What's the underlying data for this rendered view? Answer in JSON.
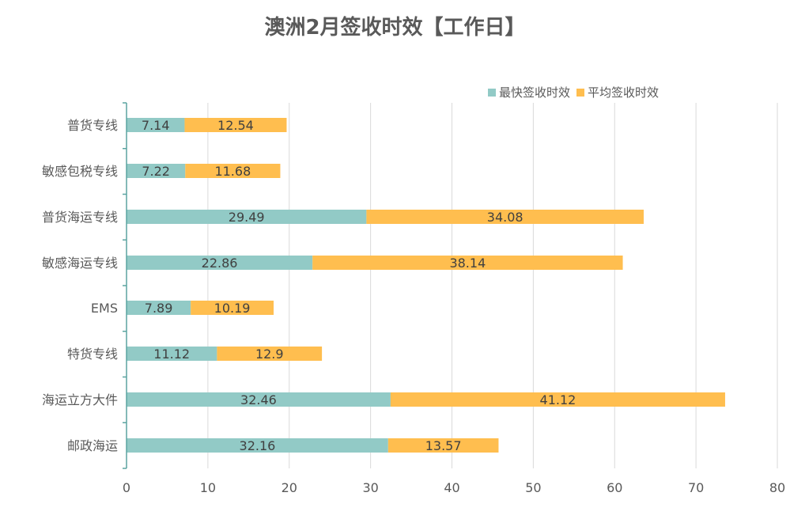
{
  "chart_data": {
    "type": "bar",
    "orientation": "horizontal",
    "stacked": true,
    "title": "澳洲2月签收时效【工作日】",
    "categories": [
      "普货专线",
      "敏感包税专线",
      "普货海运专线",
      "敏感海运专线",
      "EMS",
      "特货专线",
      "海运立方大件",
      "邮政海运"
    ],
    "series": [
      {
        "name": "最快签收时效",
        "color": "#92CAC6",
        "values": [
          7.14,
          7.22,
          29.49,
          22.86,
          7.89,
          11.12,
          32.46,
          32.16
        ]
      },
      {
        "name": "平均签收时效",
        "color": "#FFBE4F",
        "values": [
          12.54,
          11.68,
          34.08,
          38.14,
          10.19,
          12.9,
          41.12,
          13.57
        ]
      }
    ],
    "xlim": [
      0,
      80
    ],
    "xticks": [
      0,
      10,
      20,
      30,
      40,
      50,
      60,
      70,
      80
    ],
    "xticks_text": [
      "0",
      "10",
      "20",
      "30",
      "40",
      "50",
      "60",
      "70",
      "80"
    ],
    "grid": "vertical",
    "legend_position": "top-right",
    "data_labels": true
  }
}
